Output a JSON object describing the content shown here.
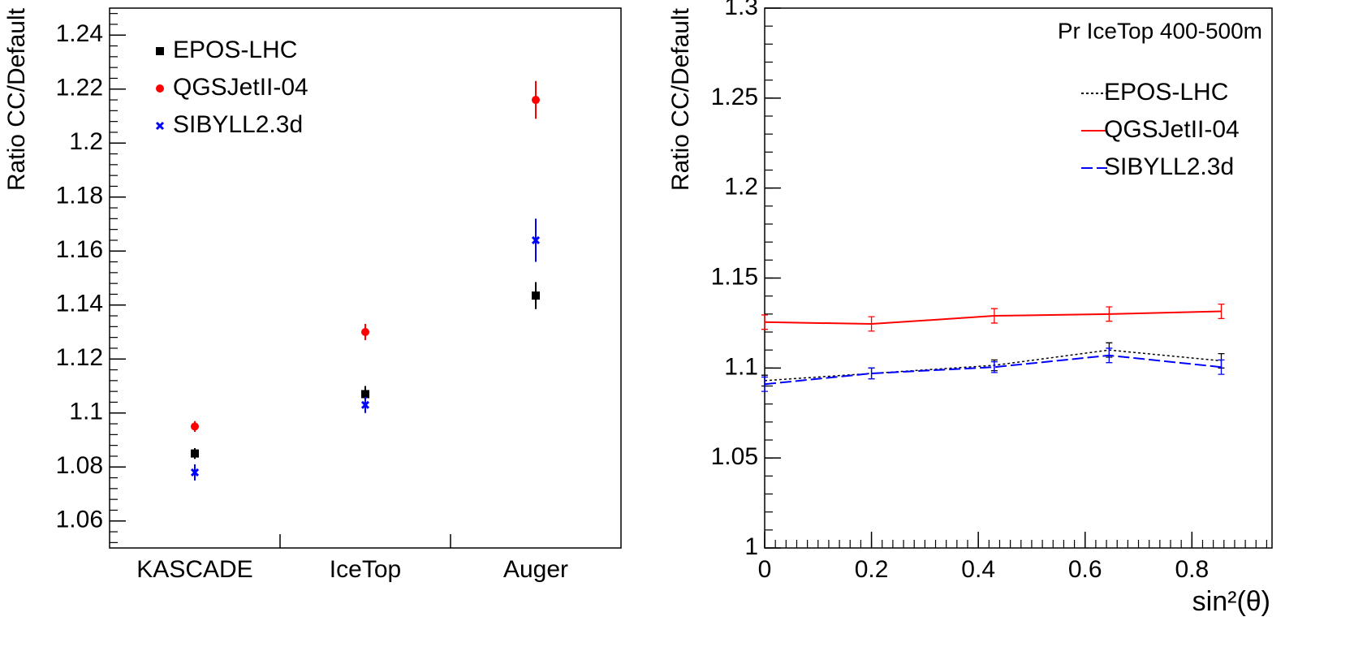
{
  "chart_data": [
    {
      "type": "errorbar",
      "ylabel": "Ratio CC/Default",
      "categories": [
        "KASCADE",
        "IceTop",
        "Auger"
      ],
      "series": [
        {
          "name": "EPOS-LHC",
          "color": "#000000",
          "marker": "square",
          "values": [
            1.085,
            1.107,
            1.1435
          ],
          "errors": [
            0.002,
            0.003,
            0.005
          ]
        },
        {
          "name": "QGSJetII-04",
          "color": "#ff0000",
          "marker": "circle",
          "values": [
            1.095,
            1.13,
            1.216
          ],
          "errors": [
            0.002,
            0.003,
            0.007
          ]
        },
        {
          "name": "SIBYLL2.3d",
          "color": "#0000ff",
          "marker": "cross",
          "values": [
            1.078,
            1.103,
            1.164
          ],
          "errors": [
            0.003,
            0.003,
            0.008
          ]
        }
      ],
      "ylim": [
        1.05,
        1.25
      ],
      "yticks": [
        1.06,
        1.08,
        1.1,
        1.12,
        1.14,
        1.16,
        1.18,
        1.2,
        1.22,
        1.24
      ],
      "legend": "top-left"
    },
    {
      "type": "line",
      "ylabel": "Ratio CC/Default",
      "xlabel": "sin²(θ)",
      "annotation": "Pr IceTop 400-500m",
      "x": [
        0,
        0.2,
        0.43,
        0.645,
        0.855
      ],
      "series": [
        {
          "name": "EPOS-LHC",
          "color": "#000000",
          "line_style": "dotted",
          "values": [
            1.093,
            1.097,
            1.1015,
            1.11,
            1.104
          ],
          "errors": [
            0.003,
            0.003,
            0.003,
            0.004,
            0.004
          ]
        },
        {
          "name": "QGSJetII-04",
          "color": "#ff0000",
          "line_style": "solid",
          "values": [
            1.1255,
            1.1245,
            1.129,
            1.13,
            1.1315
          ],
          "errors": [
            0.004,
            0.004,
            0.004,
            0.004,
            0.004
          ]
        },
        {
          "name": "SIBYLL2.3d",
          "color": "#0000ff",
          "line_style": "long-dash",
          "values": [
            1.091,
            1.097,
            1.1005,
            1.107,
            1.1005
          ],
          "errors": [
            0.004,
            0.003,
            0.003,
            0.004,
            0.004
          ]
        }
      ],
      "xlim": [
        0,
        0.95
      ],
      "xticks": [
        0,
        0.2,
        0.4,
        0.6,
        0.8
      ],
      "ylim": [
        1,
        1.3
      ],
      "yticks": [
        1,
        1.05,
        1.1,
        1.15,
        1.2,
        1.25,
        1.3
      ],
      "legend": "top-right"
    }
  ]
}
